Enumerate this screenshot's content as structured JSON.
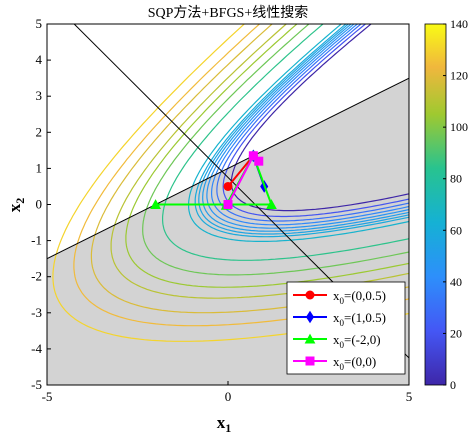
{
  "chart_data": {
    "type": "line",
    "title": "SQP方法+BFGS+线性搜索",
    "xlabel": "x",
    "xlabel_sub": "1",
    "ylabel": "x",
    "ylabel_sub": "2",
    "xlim": [
      -5,
      5
    ],
    "ylim": [
      -5,
      5
    ],
    "xticks": [
      -5,
      0,
      5
    ],
    "yticks": [
      -5,
      -4,
      -3,
      -2,
      -1,
      0,
      1,
      2,
      3,
      4,
      5
    ],
    "grid": false,
    "colorbar": {
      "range": [
        0,
        140
      ],
      "ticks": [
        0,
        20,
        40,
        60,
        80,
        100,
        120,
        140
      ],
      "colormap": "parula"
    },
    "objective_contours": {
      "center": [
        0.75,
        1.35
      ],
      "levels": [
        1,
        2,
        3,
        4,
        5,
        6,
        7,
        8,
        10,
        20,
        30,
        40,
        50,
        65,
        80,
        100
      ]
    },
    "constraint_lines": [
      {
        "from": [
          -5,
          5.75
        ],
        "to": [
          5,
          -4.25
        ]
      },
      {
        "from": [
          -5,
          -1.5
        ],
        "to": [
          5,
          3.5
        ]
      }
    ],
    "feasible_region": "below x2 = 0.5*x1 + 1 (shaded gray)",
    "legend_position": "bottom-right",
    "series": [
      {
        "name": "x",
        "sub": "0",
        "label": "=(0,0.5)",
        "color": "#ff0000",
        "marker": "circle",
        "points": [
          [
            0,
            0.5
          ],
          [
            0.7,
            1.35
          ]
        ]
      },
      {
        "name": "x",
        "sub": "0",
        "label": "=(1,0.5)",
        "color": "#0000ff",
        "marker": "diamond",
        "points": [
          [
            1,
            0.5
          ],
          [
            0.7,
            1.35
          ]
        ]
      },
      {
        "name": "x",
        "sub": "0",
        "label": "=(-2,0)",
        "color": "#00ff00",
        "marker": "triangle",
        "points": [
          [
            -2,
            0
          ],
          [
            1.2,
            0
          ],
          [
            0.7,
            1.35
          ],
          [
            -0.05,
            -0.02
          ]
        ]
      },
      {
        "name": "x",
        "sub": "0",
        "label": "=(0,0)",
        "color": "#ff00ff",
        "marker": "square",
        "points": [
          [
            0,
            0
          ],
          [
            0.7,
            1.35
          ],
          [
            0.85,
            1.2
          ]
        ]
      }
    ]
  }
}
